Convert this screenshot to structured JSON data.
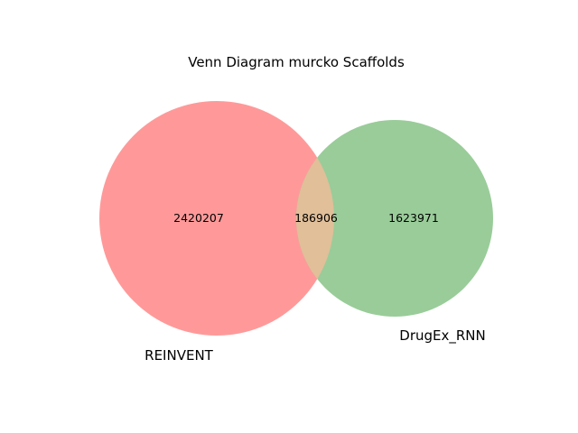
{
  "title": "Venn Diagram murcko Scaffolds",
  "colors": {
    "background": "#ffffff",
    "set_a": "#ff9999",
    "set_b": "#99cc99",
    "overlap": "#e0bf99"
  },
  "venn": {
    "set_a": {
      "label": "REINVENT",
      "only_count": "2420207"
    },
    "set_b": {
      "label": "DrugEx_RNN",
      "only_count": "1623971"
    },
    "intersection_count": "186906"
  }
}
